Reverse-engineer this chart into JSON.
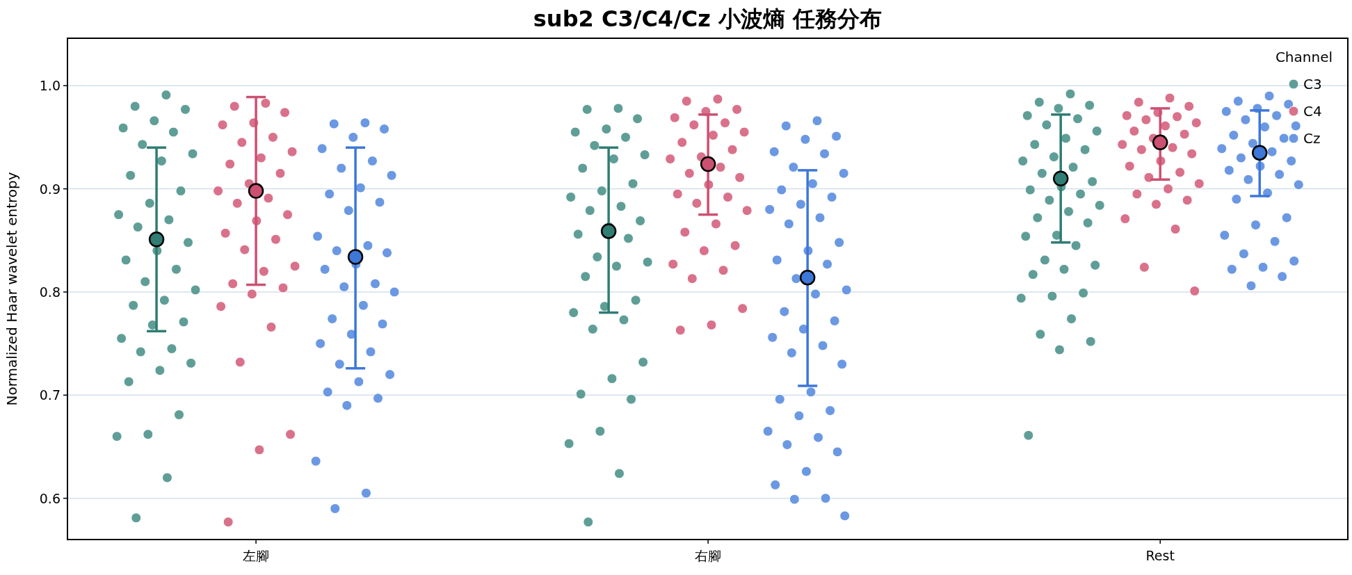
{
  "chart_data": {
    "type": "scatter",
    "title": "sub2 C3/C4/Cz 小波熵 任務分布",
    "ylabel": "Normalized Haar wavelet entropy",
    "legend_title": "Channel",
    "legend": "top right",
    "grid": "y",
    "marker": "circle",
    "categories": [
      "左腳",
      "右腳",
      "Rest"
    ],
    "ylim": [
      0.56,
      1.046
    ],
    "yticks": [
      {
        "value": 0.6,
        "label": "0.6"
      },
      {
        "value": 0.7,
        "label": "0.7"
      },
      {
        "value": 0.8,
        "label": "0.8"
      },
      {
        "value": 0.9,
        "label": "0.9"
      },
      {
        "value": 1.0,
        "label": "1.0"
      }
    ],
    "series": [
      {
        "name": "C3",
        "color": "#5f9e96",
        "x": [
          "左腳",
          "左腳",
          "左腳",
          "左腳",
          "左腳",
          "左腳",
          "左腳",
          "左腳",
          "左腳",
          "左腳",
          "左腳",
          "左腳",
          "左腳",
          "左腳",
          "左腳",
          "左腳",
          "左腳",
          "左腳",
          "左腳",
          "左腳",
          "左腳",
          "左腳",
          "左腳",
          "左腳",
          "左腳",
          "左腳",
          "左腳",
          "左腳",
          "左腳",
          "左腳",
          "左腳",
          "左腳",
          "左腳",
          "左腳",
          "左腳",
          "左腳",
          "右腳",
          "右腳",
          "右腳",
          "右腳",
          "右腳",
          "右腳",
          "右腳",
          "右腳",
          "右腳",
          "右腳",
          "右腳",
          "右腳",
          "右腳",
          "右腳",
          "右腳",
          "右腳",
          "右腳",
          "右腳",
          "右腳",
          "右腳",
          "右腳",
          "右腳",
          "右腳",
          "右腳",
          "右腳",
          "右腳",
          "右腳",
          "右腳",
          "右腳",
          "右腳",
          "右腳",
          "右腳",
          "右腳",
          "右腳",
          "右腳",
          "右腳",
          "Rest",
          "Rest",
          "Rest",
          "Rest",
          "Rest",
          "Rest",
          "Rest",
          "Rest",
          "Rest",
          "Rest",
          "Rest",
          "Rest",
          "Rest",
          "Rest",
          "Rest",
          "Rest",
          "Rest",
          "Rest",
          "Rest",
          "Rest",
          "Rest",
          "Rest",
          "Rest",
          "Rest",
          "Rest",
          "Rest",
          "Rest",
          "Rest",
          "Rest",
          "Rest",
          "Rest",
          "Rest",
          "Rest",
          "Rest",
          "Rest",
          "Rest",
          "Rest",
          "Rest",
          "Rest"
        ],
        "values": [
          0.991,
          0.98,
          0.977,
          0.966,
          0.959,
          0.955,
          0.943,
          0.934,
          0.927,
          0.913,
          0.898,
          0.886,
          0.875,
          0.87,
          0.863,
          0.848,
          0.84,
          0.831,
          0.822,
          0.81,
          0.802,
          0.792,
          0.787,
          0.771,
          0.768,
          0.755,
          0.745,
          0.742,
          0.731,
          0.724,
          0.713,
          0.681,
          0.662,
          0.66,
          0.62,
          0.581,
          0.978,
          0.977,
          0.968,
          0.958,
          0.955,
          0.95,
          0.942,
          0.933,
          0.929,
          0.92,
          0.905,
          0.898,
          0.892,
          0.883,
          0.879,
          0.869,
          0.863,
          0.856,
          0.852,
          0.834,
          0.829,
          0.825,
          0.815,
          0.792,
          0.786,
          0.78,
          0.773,
          0.764,
          0.732,
          0.716,
          0.701,
          0.696,
          0.665,
          0.653,
          0.624,
          0.577,
          0.992,
          0.984,
          0.981,
          0.978,
          0.971,
          0.968,
          0.962,
          0.956,
          0.949,
          0.943,
          0.938,
          0.931,
          0.927,
          0.921,
          0.915,
          0.907,
          0.902,
          0.899,
          0.895,
          0.889,
          0.884,
          0.878,
          0.872,
          0.867,
          0.855,
          0.854,
          0.845,
          0.831,
          0.826,
          0.822,
          0.817,
          0.799,
          0.796,
          0.794,
          0.774,
          0.759,
          0.752,
          0.744,
          0.661
        ]
      },
      {
        "name": "C4",
        "color": "#d9718b",
        "x": [
          "左腳",
          "左腳",
          "左腳",
          "左腳",
          "左腳",
          "左腳",
          "左腳",
          "左腳",
          "左腳",
          "左腳",
          "左腳",
          "左腳",
          "左腳",
          "左腳",
          "左腳",
          "左腳",
          "左腳",
          "左腳",
          "左腳",
          "左腳",
          "左腳",
          "左腳",
          "左腳",
          "左腳",
          "左腳",
          "左腳",
          "左腳",
          "左腳",
          "左腳",
          "左腳",
          "左腳",
          "右腳",
          "右腳",
          "右腳",
          "右腳",
          "右腳",
          "右腳",
          "右腳",
          "右腳",
          "右腳",
          "右腳",
          "右腳",
          "右腳",
          "右腳",
          "右腳",
          "右腳",
          "右腳",
          "右腳",
          "右腳",
          "右腳",
          "右腳",
          "右腳",
          "右腳",
          "右腳",
          "右腳",
          "右腳",
          "右腳",
          "右腳",
          "右腳",
          "右腳",
          "右腳",
          "右腳",
          "Rest",
          "Rest",
          "Rest",
          "Rest",
          "Rest",
          "Rest",
          "Rest",
          "Rest",
          "Rest",
          "Rest",
          "Rest",
          "Rest",
          "Rest",
          "Rest",
          "Rest",
          "Rest",
          "Rest",
          "Rest",
          "Rest",
          "Rest",
          "Rest",
          "Rest",
          "Rest",
          "Rest",
          "Rest",
          "Rest",
          "Rest",
          "Rest",
          "Rest"
        ],
        "values": [
          0.983,
          0.98,
          0.974,
          0.964,
          0.962,
          0.95,
          0.945,
          0.936,
          0.93,
          0.924,
          0.915,
          0.905,
          0.898,
          0.891,
          0.886,
          0.875,
          0.869,
          0.857,
          0.851,
          0.841,
          0.825,
          0.82,
          0.808,
          0.804,
          0.798,
          0.786,
          0.766,
          0.732,
          0.662,
          0.647,
          0.577,
          0.987,
          0.985,
          0.977,
          0.975,
          0.969,
          0.964,
          0.962,
          0.955,
          0.952,
          0.945,
          0.938,
          0.931,
          0.929,
          0.921,
          0.915,
          0.911,
          0.904,
          0.895,
          0.892,
          0.886,
          0.879,
          0.866,
          0.858,
          0.845,
          0.84,
          0.827,
          0.821,
          0.813,
          0.784,
          0.768,
          0.763,
          0.988,
          0.984,
          0.98,
          0.974,
          0.971,
          0.97,
          0.967,
          0.964,
          0.961,
          0.956,
          0.953,
          0.949,
          0.943,
          0.94,
          0.938,
          0.934,
          0.927,
          0.922,
          0.916,
          0.911,
          0.905,
          0.9,
          0.895,
          0.889,
          0.885,
          0.871,
          0.861,
          0.824,
          0.801
        ]
      },
      {
        "name": "Cz",
        "color": "#6b98e2",
        "x": [
          "左腳",
          "左腳",
          "左腳",
          "左腳",
          "左腳",
          "左腳",
          "左腳",
          "左腳",
          "左腳",
          "左腳",
          "左腳",
          "左腳",
          "左腳",
          "左腳",
          "左腳",
          "左腳",
          "左腳",
          "左腳",
          "左腳",
          "左腳",
          "左腳",
          "左腳",
          "左腳",
          "左腳",
          "左腳",
          "左腳",
          "左腳",
          "左腳",
          "左腳",
          "左腳",
          "左腳",
          "左腳",
          "左腳",
          "左腳",
          "左腳",
          "左腳",
          "右腳",
          "右腳",
          "右腳",
          "右腳",
          "右腳",
          "右腳",
          "右腳",
          "右腳",
          "右腳",
          "右腳",
          "右腳",
          "右腳",
          "右腳",
          "右腳",
          "右腳",
          "右腳",
          "右腳",
          "右腳",
          "右腳",
          "右腳",
          "右腳",
          "右腳",
          "右腳",
          "右腳",
          "右腳",
          "右腳",
          "右腳",
          "右腳",
          "右腳",
          "右腳",
          "右腳",
          "右腳",
          "右腳",
          "右腳",
          "右腳",
          "右腳",
          "右腳",
          "右腳",
          "右腳",
          "右腳",
          "右腳",
          "右腳",
          "Rest",
          "Rest",
          "Rest",
          "Rest",
          "Rest",
          "Rest",
          "Rest",
          "Rest",
          "Rest",
          "Rest",
          "Rest",
          "Rest",
          "Rest",
          "Rest",
          "Rest",
          "Rest",
          "Rest",
          "Rest",
          "Rest",
          "Rest",
          "Rest",
          "Rest",
          "Rest",
          "Rest",
          "Rest",
          "Rest",
          "Rest",
          "Rest",
          "Rest",
          "Rest",
          "Rest",
          "Rest",
          "Rest"
        ],
        "values": [
          0.964,
          0.963,
          0.958,
          0.95,
          0.939,
          0.927,
          0.92,
          0.913,
          0.901,
          0.895,
          0.887,
          0.879,
          0.854,
          0.845,
          0.84,
          0.838,
          0.827,
          0.822,
          0.808,
          0.805,
          0.8,
          0.787,
          0.774,
          0.769,
          0.759,
          0.75,
          0.742,
          0.73,
          0.72,
          0.713,
          0.703,
          0.697,
          0.69,
          0.636,
          0.605,
          0.59,
          0.966,
          0.961,
          0.951,
          0.948,
          0.936,
          0.934,
          0.921,
          0.915,
          0.905,
          0.899,
          0.892,
          0.885,
          0.88,
          0.872,
          0.866,
          0.848,
          0.84,
          0.831,
          0.827,
          0.813,
          0.802,
          0.798,
          0.781,
          0.772,
          0.764,
          0.756,
          0.748,
          0.741,
          0.73,
          0.703,
          0.696,
          0.685,
          0.68,
          0.665,
          0.659,
          0.652,
          0.645,
          0.626,
          0.613,
          0.6,
          0.599,
          0.583,
          0.99,
          0.985,
          0.982,
          0.978,
          0.975,
          0.971,
          0.967,
          0.961,
          0.96,
          0.952,
          0.949,
          0.944,
          0.939,
          0.936,
          0.93,
          0.927,
          0.922,
          0.918,
          0.914,
          0.909,
          0.904,
          0.896,
          0.89,
          0.872,
          0.865,
          0.855,
          0.849,
          0.837,
          0.83,
          0.824,
          0.822,
          0.815,
          0.806
        ]
      },
      {
        "color": "#2f7d73",
        "values": [
          0.851,
          0.859,
          0.91
        ],
        "errors": [
          [
            0.762,
            0.94
          ],
          [
            0.78,
            0.94
          ],
          [
            0.848,
            0.972
          ]
        ]
      },
      {
        "color": "#cc5072",
        "values": [
          0.898,
          0.924,
          0.945
        ],
        "errors": [
          [
            0.807,
            0.989
          ],
          [
            0.875,
            0.972
          ],
          [
            0.909,
            0.978
          ]
        ]
      },
      {
        "color": "#3d77d8",
        "values": [
          0.834,
          0.814,
          0.935
        ],
        "errors": [
          [
            0.726,
            0.94
          ],
          [
            0.709,
            0.918
          ],
          [
            0.893,
            0.976
          ]
        ]
      }
    ]
  }
}
